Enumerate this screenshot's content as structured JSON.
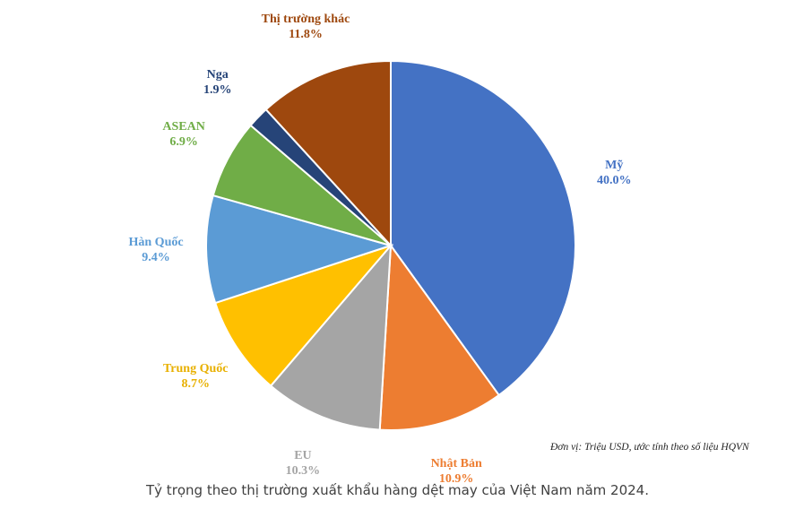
{
  "chart_data": {
    "type": "pie",
    "start": "top, clockwise",
    "slices": [
      {
        "label": "Mỹ",
        "value": 40.0,
        "value_text": "40.0%",
        "color": "#4472C4",
        "label_color": "#4472C4"
      },
      {
        "label": "Nhật Bản",
        "value": 10.9,
        "value_text": "10.9%",
        "color": "#ED7D31",
        "label_color": "#ED7D31"
      },
      {
        "label": "EU",
        "value": 10.3,
        "value_text": "10.3%",
        "color": "#A5A5A5",
        "label_color": "#A5A5A5"
      },
      {
        "label": "Trung Quốc",
        "value": 8.7,
        "value_text": "8.7%",
        "color": "#FFC000",
        "label_color": "#E8B000"
      },
      {
        "label": "Hàn Quốc",
        "value": 9.4,
        "value_text": "9.4%",
        "color": "#5B9BD5",
        "label_color": "#5B9BD5"
      },
      {
        "label": "ASEAN",
        "value": 6.9,
        "value_text": "6.9%",
        "color": "#70AD47",
        "label_color": "#70AD47"
      },
      {
        "label": "Nga",
        "value": 1.9,
        "value_text": "1.9%",
        "color": "#264478",
        "label_color": "#264478"
      },
      {
        "label": "Thị trường khác",
        "value": 11.8,
        "value_text": "11.8%",
        "color": "#9E480E",
        "label_color": "#9E480E"
      }
    ],
    "unit_note": "Đơn vị: Triệu USD, ước tính theo số liệu HQVN"
  },
  "caption": "Tỷ trọng theo thị trường xuất khẩu hàng dệt may của Việt Nam năm 2024."
}
